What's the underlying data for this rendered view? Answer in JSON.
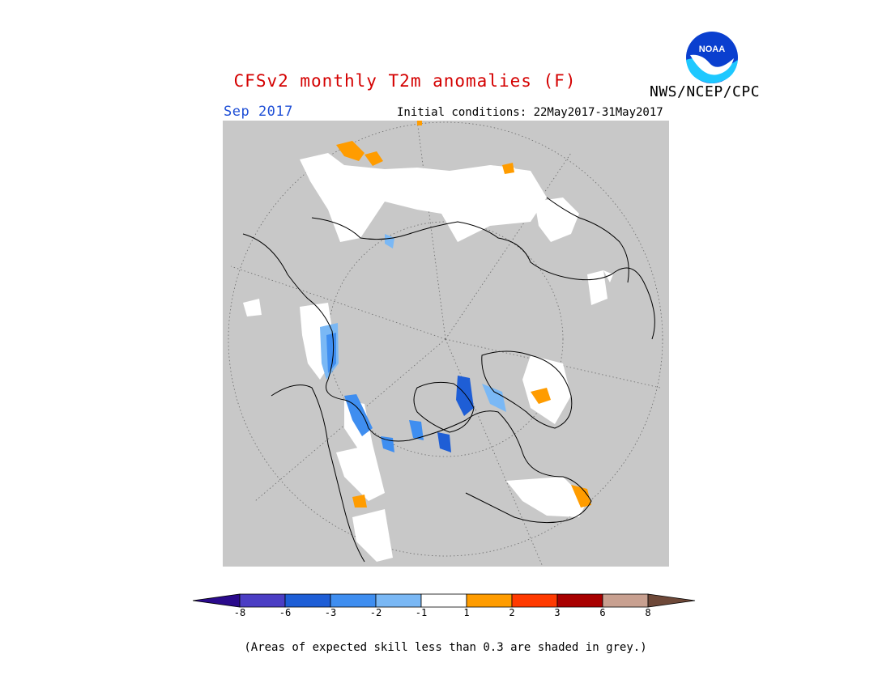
{
  "title": "CFSv2 monthly T2m anomalies (F)",
  "period": "Sep 2017",
  "initial_conditions": "Initial conditions: 22May2017-31May2017",
  "agency": "NWS/NCEP/CPC",
  "logo_text": "NOAA",
  "footnote": "(Areas of expected skill less than 0.3 are shaded in grey.)",
  "colorbar": {
    "boundaries": [
      "-8",
      "-6",
      "-3",
      "-2",
      "-1",
      "1",
      "2",
      "3",
      "6",
      "8"
    ],
    "colors": [
      "#2a0a8c",
      "#4b3ec4",
      "#1e5ed6",
      "#3f8ef0",
      "#7ab8f5",
      "#ffffff",
      "#ff9c00",
      "#ff3a00",
      "#a80000",
      "#c8a090",
      "#6e4838"
    ]
  },
  "map": {
    "projection": "north polar stereographic",
    "skill_mask_color": "#c8c8c8"
  }
}
